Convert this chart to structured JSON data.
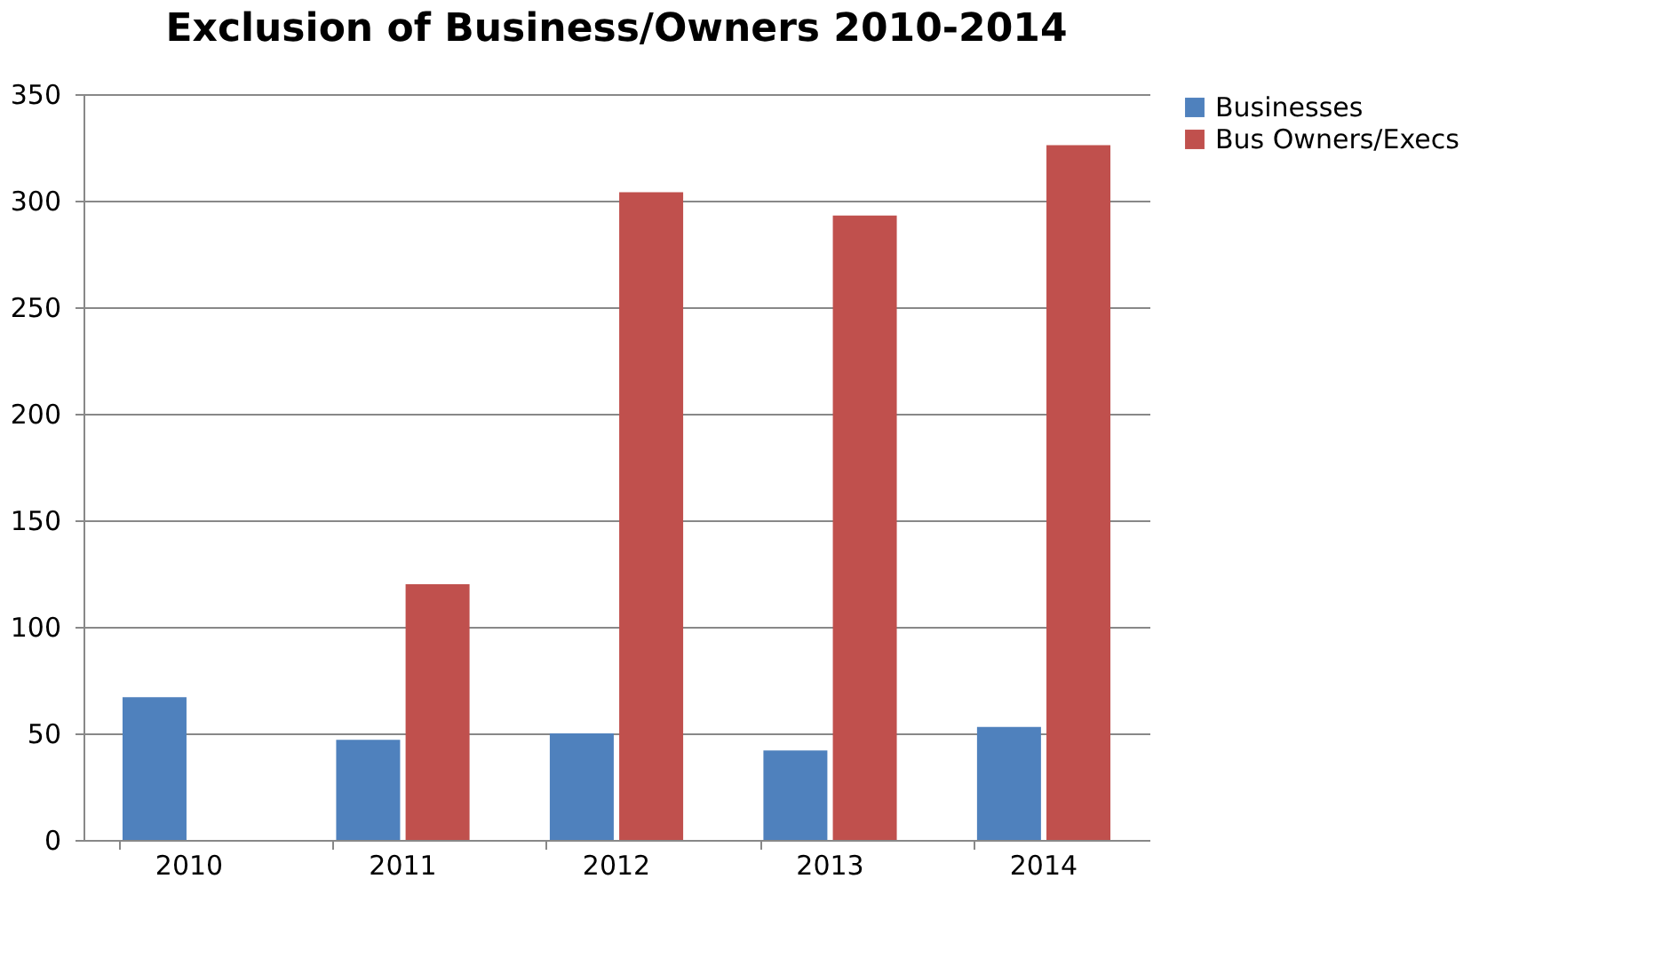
{
  "chart_data": {
    "type": "bar",
    "title": "Exclusion of Business/Owners 2010-2014",
    "categories": [
      "2010",
      "2011",
      "2012",
      "2013",
      "2014"
    ],
    "series": [
      {
        "name": "Businesses",
        "color": "#4f81bd",
        "values": [
          67,
          47,
          50,
          42,
          53
        ]
      },
      {
        "name": "Bus Owners/Execs",
        "color": "#c0504d",
        "values": [
          null,
          120,
          304,
          293,
          326
        ]
      }
    ],
    "ylim": [
      0,
      350
    ],
    "yticks": [
      0,
      50,
      100,
      150,
      200,
      250,
      300,
      350
    ],
    "grid": "y",
    "legend": "right"
  }
}
